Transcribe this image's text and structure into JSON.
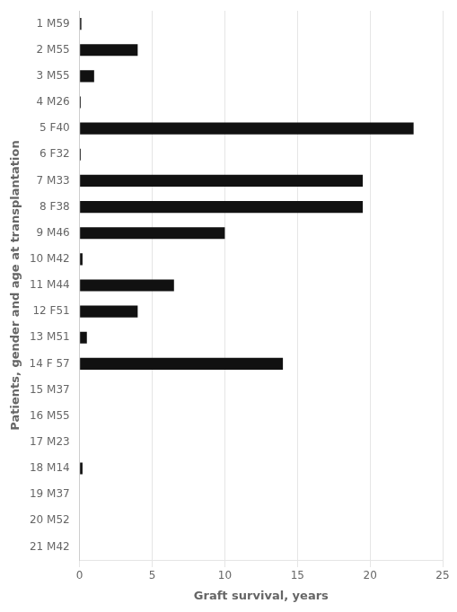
{
  "chart_data": {
    "type": "bar",
    "orientation": "horizontal",
    "categories": [
      "1 M59",
      "2 M55",
      "3 M55",
      "4 M26",
      "5 F40",
      "6 F32",
      "7 M33",
      "8 F38",
      "9 M46",
      "10 M42",
      "11 M44",
      "12 F51",
      "13 M51",
      "14 F 57",
      "15 M37",
      "16 M55",
      "17 M23",
      "18 M14",
      "19 M37",
      "20 M52",
      "21 M42"
    ],
    "values": [
      0.12,
      4.0,
      1.0,
      0.08,
      23.0,
      0.08,
      19.5,
      19.5,
      10.0,
      0.2,
      6.5,
      4.0,
      0.5,
      14.0,
      0.0,
      0.0,
      0.0,
      0.2,
      0.0,
      0.0,
      0.0
    ],
    "color": "#111111",
    "xlabel": "Graft survival, years",
    "ylabel": "Patients, gender and age at transplantation",
    "xlim": [
      0,
      25
    ],
    "xticks": [
      0,
      5,
      10,
      15,
      20,
      25
    ],
    "grid": true
  }
}
